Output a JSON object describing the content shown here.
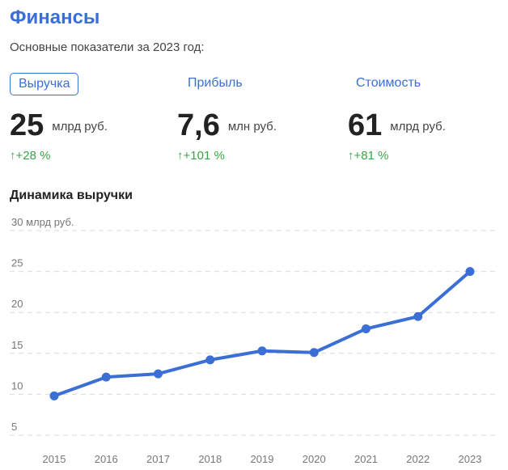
{
  "header": {
    "title": "Финансы",
    "subtitle": "Основные показатели за 2023 год:"
  },
  "metrics": [
    {
      "tab": "Выручка",
      "value": "25",
      "unit": "млрд руб.",
      "change": "↑+28 %",
      "active": true
    },
    {
      "tab": "Прибыль",
      "value": "7,6",
      "unit": "млн руб.",
      "change": "↑+101 %",
      "active": false
    },
    {
      "tab": "Стоимость",
      "value": "61",
      "unit": "млрд руб.",
      "change": "↑+81 %",
      "active": false
    }
  ],
  "colors": {
    "accent": "#3a6fd8",
    "positive": "#35a845",
    "line": "#3b6fd6",
    "grid": "#d9d9d9"
  },
  "chart_data": {
    "type": "line",
    "title": "Динамика выручки",
    "ylabel": "",
    "x": [
      "2015",
      "2016",
      "2017",
      "2018",
      "2019",
      "2020",
      "2021",
      "2022",
      "2023"
    ],
    "series": [
      {
        "values": [
          9.8,
          12.1,
          12.5,
          14.2,
          15.3,
          15.1,
          18.0,
          19.5,
          25.0
        ]
      }
    ],
    "ylim": [
      3,
      30
    ],
    "yticks": [
      5,
      10,
      15,
      20,
      25,
      30
    ],
    "ytick_labels": [
      "5",
      "10",
      "15",
      "20",
      "25",
      "30 млрд руб."
    ],
    "grid": true
  }
}
